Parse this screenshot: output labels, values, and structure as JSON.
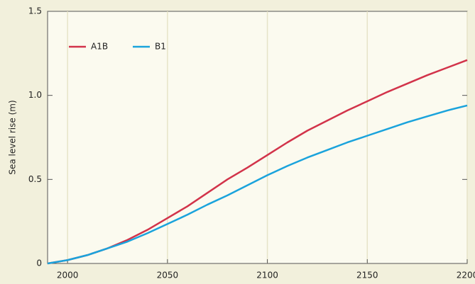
{
  "chart_data": {
    "type": "line",
    "y_label": "Sea level rise (m)",
    "x": [
      1990,
      2000,
      2010,
      2020,
      2030,
      2040,
      2050,
      2060,
      2070,
      2080,
      2090,
      2100,
      2110,
      2120,
      2130,
      2140,
      2150,
      2160,
      2170,
      2180,
      2190,
      2200
    ],
    "series": [
      {
        "name": "A1B",
        "color": "#d2334a",
        "values": [
          0,
          0.02,
          0.05,
          0.09,
          0.14,
          0.2,
          0.27,
          0.34,
          0.42,
          0.5,
          0.57,
          0.645,
          0.72,
          0.79,
          0.85,
          0.91,
          0.965,
          1.02,
          1.07,
          1.12,
          1.165,
          1.21
        ]
      },
      {
        "name": "B1",
        "color": "#1aa3dc",
        "values": [
          0,
          0.02,
          0.05,
          0.09,
          0.13,
          0.18,
          0.235,
          0.29,
          0.35,
          0.405,
          0.465,
          0.525,
          0.58,
          0.63,
          0.675,
          0.72,
          0.76,
          0.8,
          0.84,
          0.875,
          0.91,
          0.94
        ]
      }
    ],
    "xlim": [
      1990,
      2200
    ],
    "ylim": [
      0,
      1.5
    ],
    "xticks": [
      2000,
      2050,
      2100,
      2150,
      2200
    ],
    "yticks": [
      0,
      0.5,
      {
        "value": 1,
        "label": "1.0"
      },
      1.5
    ],
    "grid": true,
    "legend": "top-left"
  }
}
